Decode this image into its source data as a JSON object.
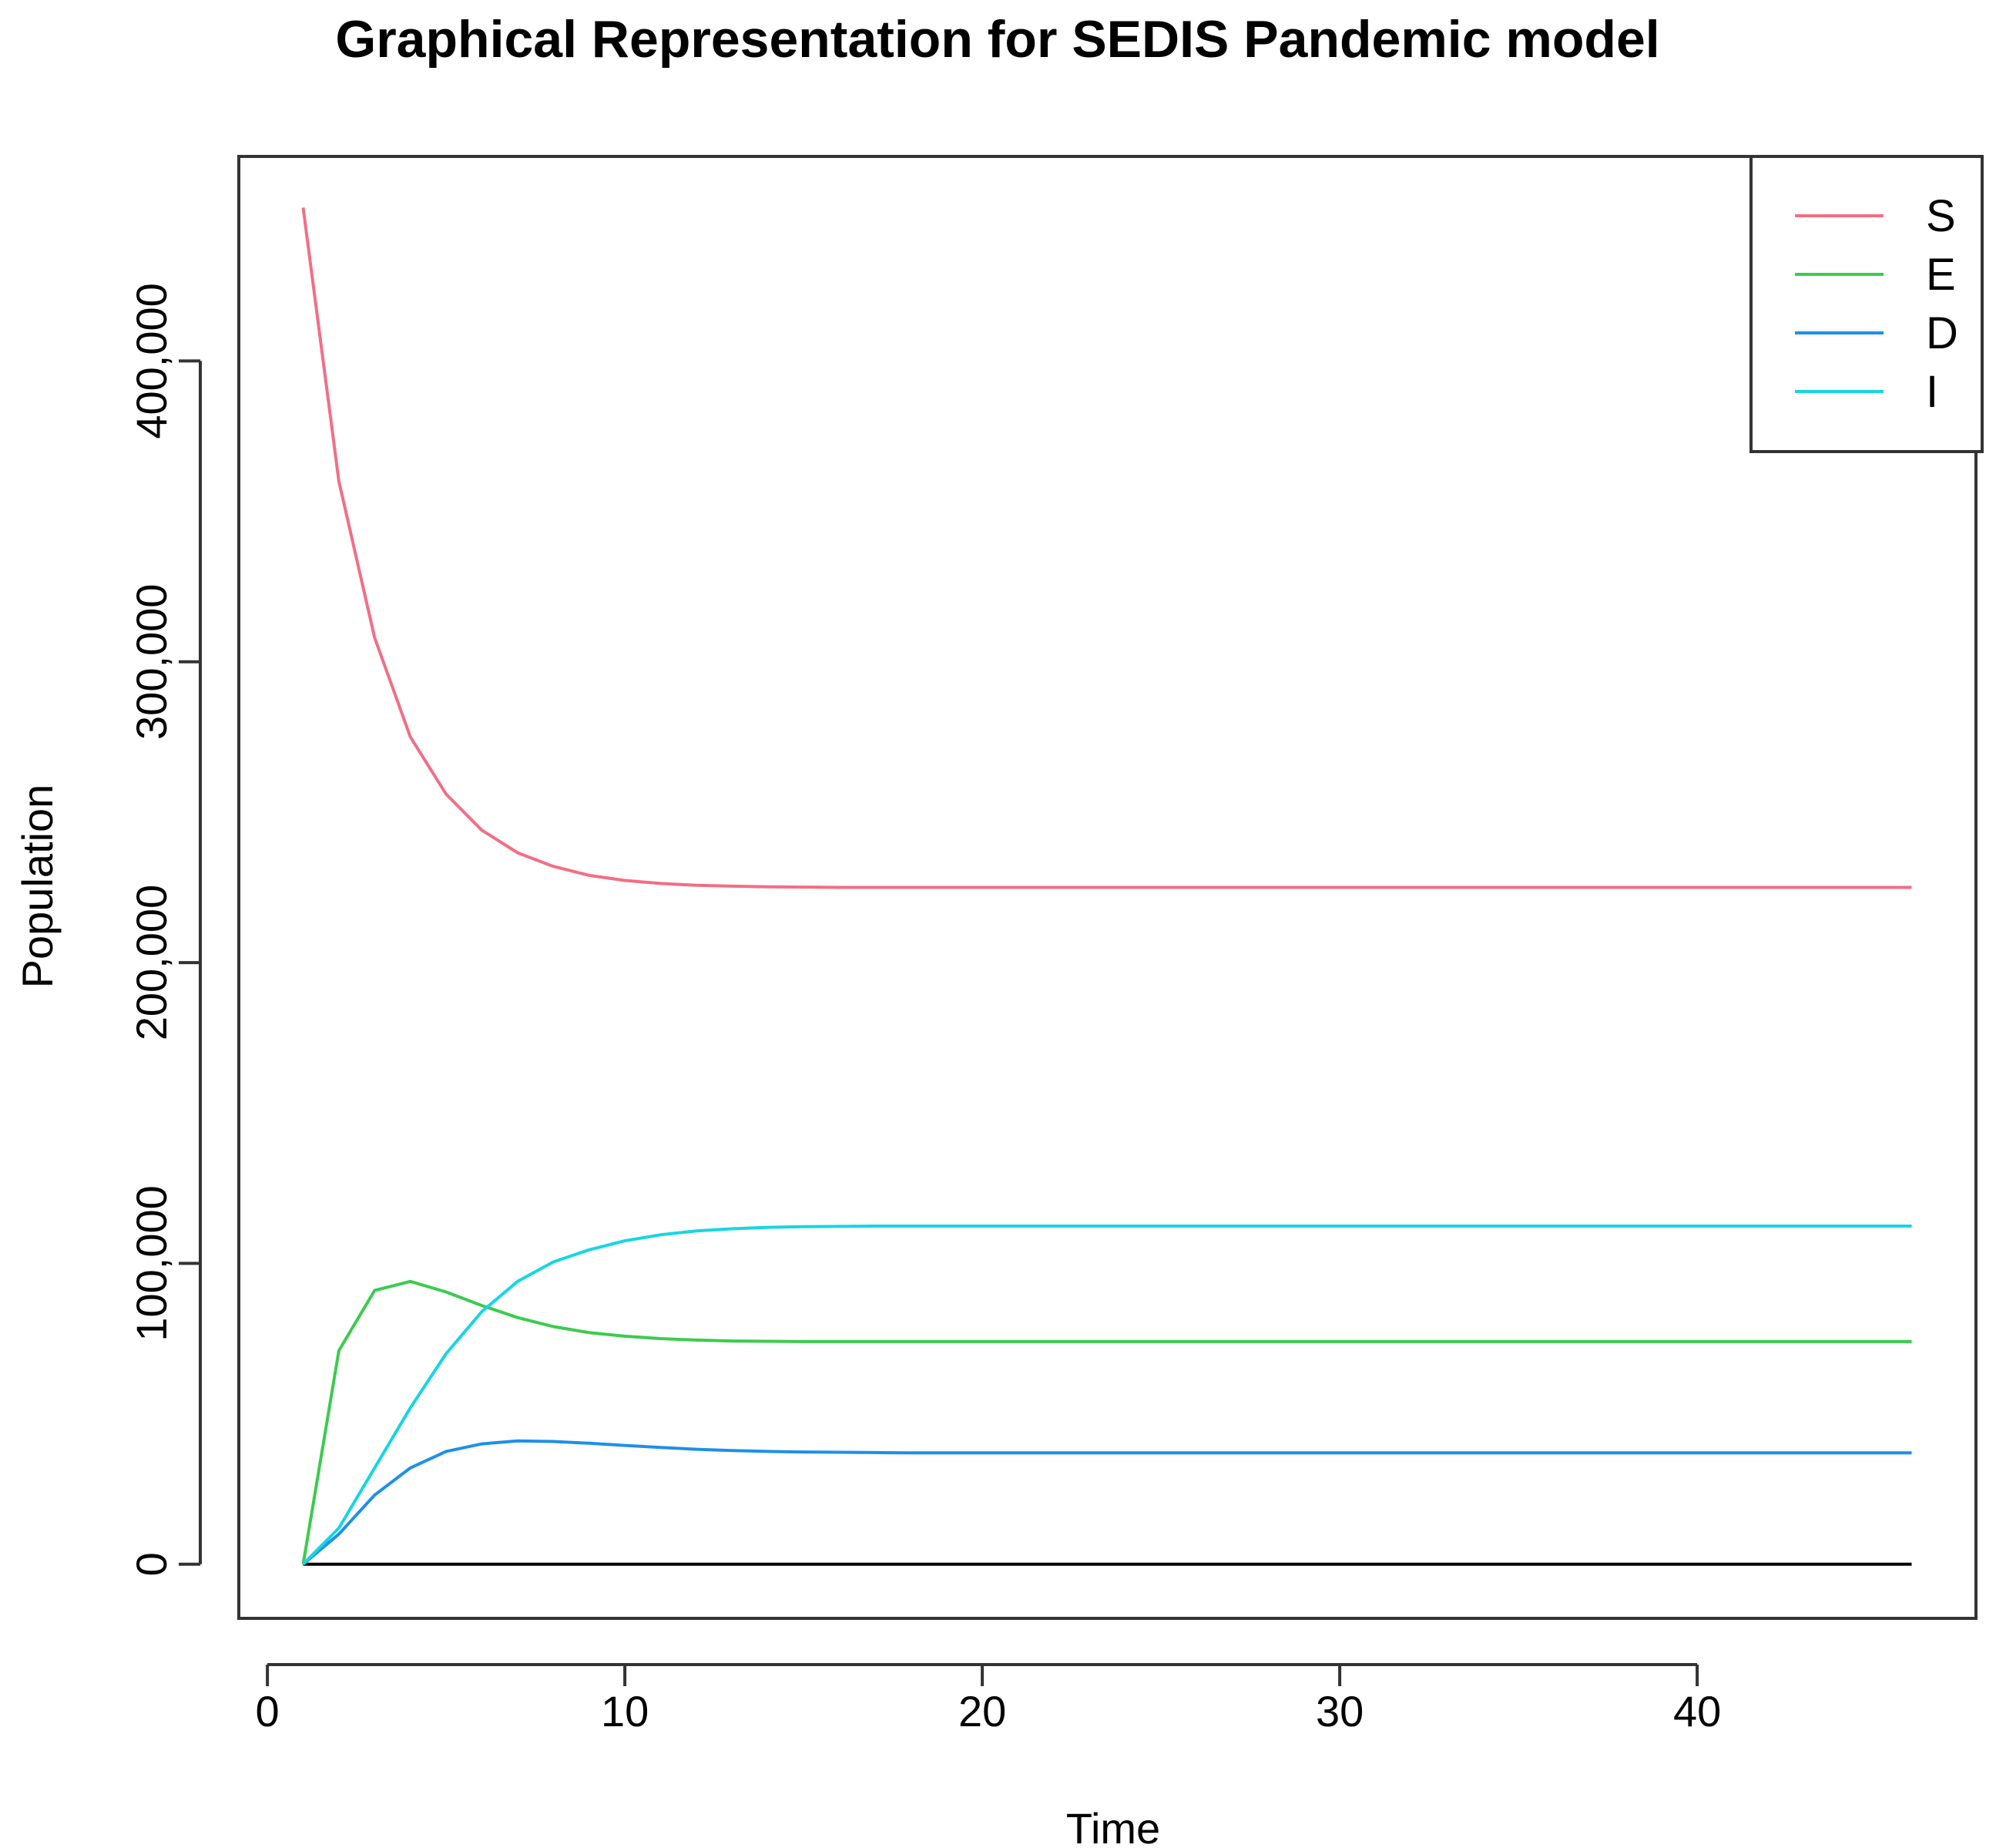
{
  "chart_data": {
    "type": "line",
    "title": "Graphical Representation for SEDIS Pandemic model",
    "xlabel": "Time",
    "ylabel": "Population",
    "xlim": [
      -0.8,
      47.8
    ],
    "ylim": [
      -18000,
      468000
    ],
    "x_ticks": [
      0,
      10,
      20,
      30,
      40
    ],
    "x_tick_labels": [
      "0",
      "10",
      "20",
      "30",
      "40"
    ],
    "y_ticks": [
      0,
      100000,
      200000,
      300000,
      400000
    ],
    "y_tick_labels": [
      "0",
      "100,000",
      "200,000",
      "300,000",
      "400,000"
    ],
    "grid": false,
    "legend_position": "top-right",
    "reference_line": {
      "y": 0,
      "x_from": 1,
      "x_to": 46,
      "color": "#000000"
    },
    "x": [
      1,
      2,
      3,
      4,
      5,
      6,
      7,
      8,
      9,
      10,
      11,
      12,
      13,
      14,
      15,
      16,
      17,
      18,
      19,
      20,
      21,
      22,
      23,
      24,
      25,
      26,
      27,
      28,
      29,
      30,
      31,
      32,
      33,
      34,
      35,
      36,
      37,
      38,
      39,
      40,
      41,
      42,
      43,
      44,
      45,
      46
    ],
    "series": [
      {
        "name": "S",
        "color": "#F26E85",
        "values": [
          451000,
          360000,
          308000,
          275000,
          256000,
          244000,
          236500,
          232000,
          229000,
          227300,
          226300,
          225700,
          225400,
          225200,
          225100,
          225000,
          225000,
          225000,
          225000,
          225000,
          225000,
          225000,
          225000,
          225000,
          225000,
          225000,
          225000,
          225000,
          225000,
          225000,
          225000,
          225000,
          225000,
          225000,
          225000,
          225000,
          225000,
          225000,
          225000,
          225000,
          225000,
          225000,
          225000,
          225000,
          225000,
          225000
        ]
      },
      {
        "name": "E",
        "color": "#3CCB4E",
        "values": [
          0,
          71000,
          91000,
          94000,
          90500,
          86000,
          82000,
          79000,
          77000,
          75800,
          75000,
          74500,
          74200,
          74100,
          74000,
          74000,
          74000,
          74000,
          74000,
          74000,
          74000,
          74000,
          74000,
          74000,
          74000,
          74000,
          74000,
          74000,
          74000,
          74000,
          74000,
          74000,
          74000,
          74000,
          74000,
          74000,
          74000,
          74000,
          74000,
          74000,
          74000,
          74000,
          74000,
          74000,
          74000,
          74000
        ]
      },
      {
        "name": "D",
        "color": "#1E90E6",
        "values": [
          0,
          10000,
          23000,
          32000,
          37500,
          40000,
          41000,
          40800,
          40200,
          39500,
          38800,
          38200,
          37800,
          37500,
          37300,
          37200,
          37100,
          37000,
          37000,
          37000,
          37000,
          37000,
          37000,
          37000,
          37000,
          37000,
          37000,
          37000,
          37000,
          37000,
          37000,
          37000,
          37000,
          37000,
          37000,
          37000,
          37000,
          37000,
          37000,
          37000,
          37000,
          37000,
          37000,
          37000,
          37000,
          37000
        ]
      },
      {
        "name": "I",
        "color": "#16D6E3",
        "values": [
          0,
          12000,
          32000,
          52000,
          70000,
          84000,
          94000,
          100500,
          104500,
          107500,
          109500,
          110800,
          111500,
          112000,
          112200,
          112300,
          112400,
          112400,
          112400,
          112400,
          112400,
          112400,
          112400,
          112400,
          112400,
          112400,
          112400,
          112400,
          112400,
          112400,
          112400,
          112400,
          112400,
          112400,
          112400,
          112400,
          112400,
          112400,
          112400,
          112400,
          112400,
          112400,
          112400,
          112400,
          112400,
          112400
        ]
      }
    ]
  }
}
